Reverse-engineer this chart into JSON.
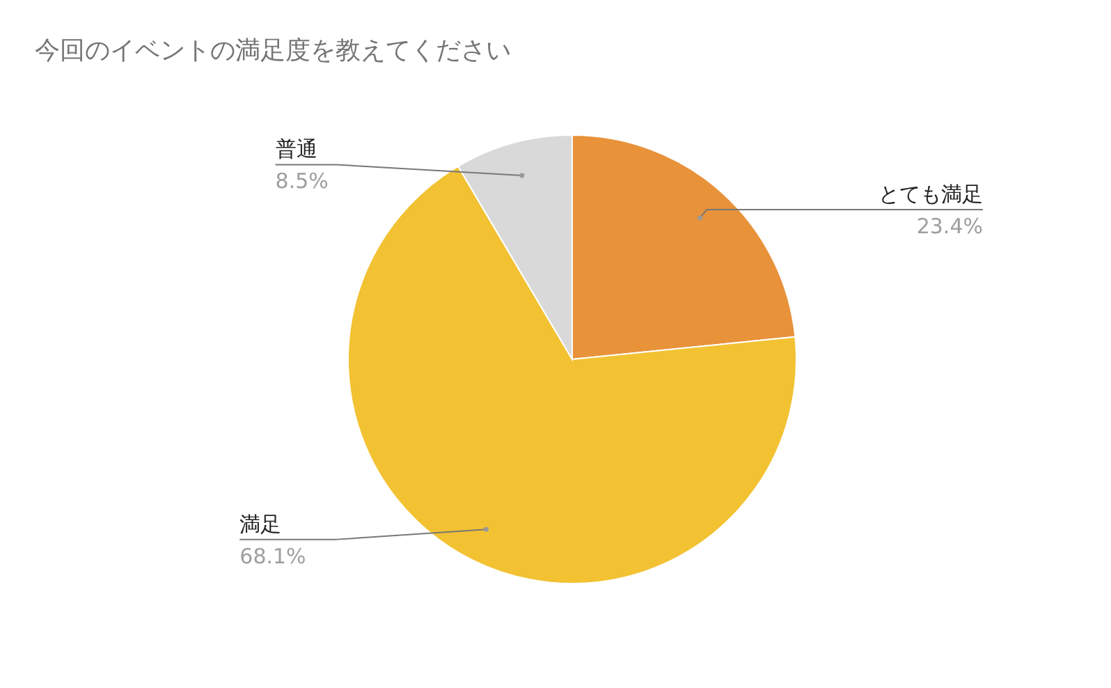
{
  "chart_data": {
    "type": "pie",
    "title": "今回のイベントの満足度を教えてください",
    "categories": [
      "とても満足",
      "満足",
      "普通"
    ],
    "values": [
      23.4,
      68.1,
      8.5
    ],
    "value_labels": [
      "23.4%",
      "68.1%",
      "8.5%"
    ],
    "colors": [
      "#e8923a",
      "#f2c232",
      "#d9d9d9"
    ]
  }
}
